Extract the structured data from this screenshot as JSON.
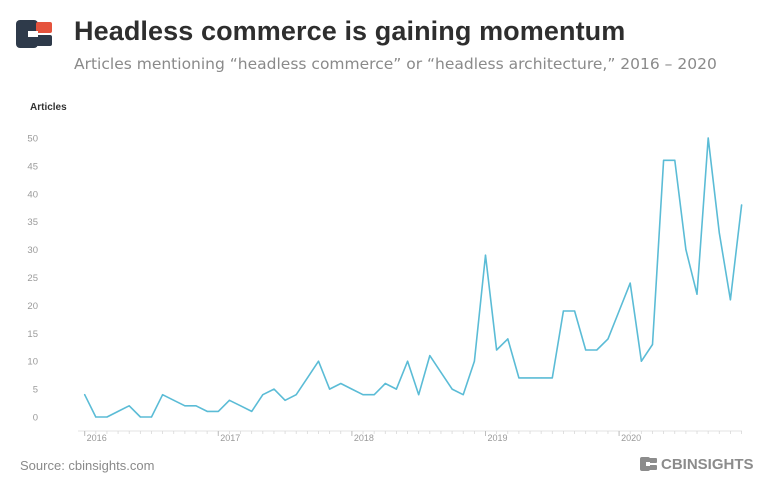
{
  "header": {
    "title": "Headless commerce is gaining momentum",
    "subtitle": "Articles mentioning “headless commerce” or “headless architecture,” 2016 – 2020"
  },
  "footer": {
    "source": "Source: cbinsights.com",
    "brand": "CBINSIGHTS"
  },
  "colors": {
    "line": "#5bbcd6",
    "title": "#2e2e2e",
    "muted": "#8a8a8a",
    "logo_dark": "#2e3a4a",
    "logo_red": "#e5533d"
  },
  "chart_data": {
    "type": "line",
    "title": "Headless commerce is gaining momentum",
    "ylabel": "Articles",
    "xlabel": "",
    "ylim": [
      0,
      50
    ],
    "yticks": [
      0,
      5,
      10,
      15,
      20,
      25,
      30,
      35,
      40,
      45,
      50
    ],
    "xlim": [
      2015.95,
      2020.92
    ],
    "xticks": [
      {
        "value": 2016.0,
        "label": "2016"
      },
      {
        "value": 2017.0,
        "label": "2017"
      },
      {
        "value": 2018.0,
        "label": "2018"
      },
      {
        "value": 2019.0,
        "label": "2019"
      },
      {
        "value": 2020.0,
        "label": "2020"
      }
    ],
    "grid": false,
    "series": [
      {
        "x": [
          2016.0,
          2016.083,
          2016.167,
          2016.25,
          2016.333,
          2016.417,
          2016.5,
          2016.583,
          2016.667,
          2016.75,
          2016.833,
          2016.917,
          2017.0,
          2017.083,
          2017.167,
          2017.25,
          2017.333,
          2017.417,
          2017.5,
          2017.583,
          2017.667,
          2017.75,
          2017.833,
          2017.917,
          2018.0,
          2018.083,
          2018.167,
          2018.25,
          2018.333,
          2018.417,
          2018.5,
          2018.583,
          2018.667,
          2018.75,
          2018.833,
          2018.917,
          2019.0,
          2019.083,
          2019.167,
          2019.25,
          2019.333,
          2019.417,
          2019.5,
          2019.583,
          2019.667,
          2019.75,
          2019.833,
          2019.917,
          2020.0,
          2020.083,
          2020.167,
          2020.25,
          2020.333,
          2020.417,
          2020.5,
          2020.583,
          2020.667,
          2020.75,
          2020.833,
          2020.917
        ],
        "values": [
          4,
          0,
          0,
          1,
          2,
          0,
          0,
          4,
          3,
          2,
          2,
          1,
          1,
          3,
          2,
          1,
          4,
          5,
          3,
          4,
          7,
          10,
          5,
          6,
          5,
          4,
          4,
          6,
          5,
          10,
          4,
          11,
          8,
          5,
          4,
          10,
          29,
          12,
          14,
          7,
          7,
          7,
          7,
          19,
          19,
          12,
          12,
          14,
          19,
          24,
          10,
          13,
          46,
          46,
          30,
          22,
          50,
          33,
          21,
          38
        ]
      }
    ]
  }
}
